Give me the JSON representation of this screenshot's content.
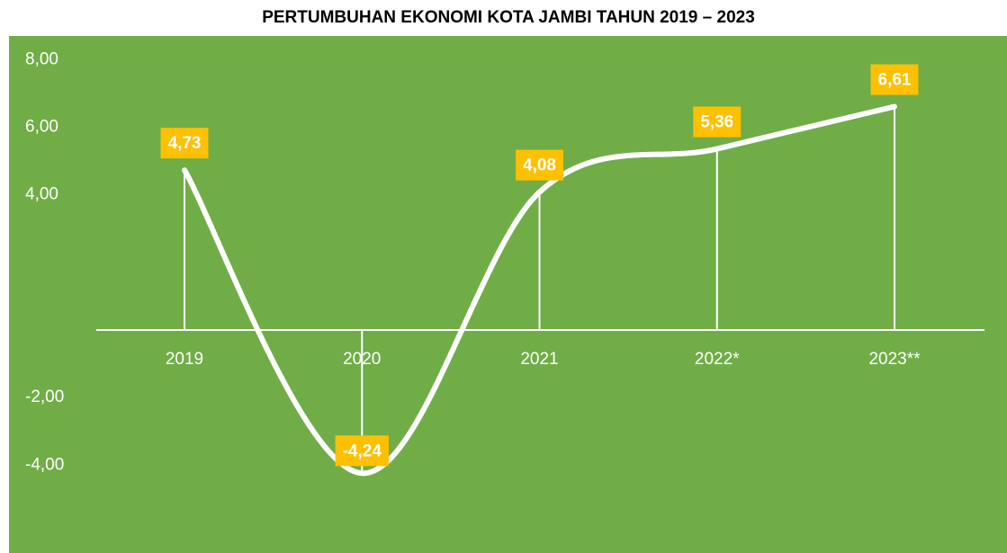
{
  "chart_data": {
    "type": "line",
    "title": "PERTUMBUHAN EKONOMI KOTA JAMBI TAHUN 2019 – 2023",
    "categories": [
      "2019",
      "2020",
      "2021",
      "2022*",
      "2023**"
    ],
    "values": [
      4.73,
      -4.24,
      4.08,
      5.36,
      6.61
    ],
    "value_labels": [
      "4,73",
      "-4,24",
      "4,08",
      "5,36",
      "6,61"
    ],
    "color": "#ffffff",
    "label_color": "#ffc000",
    "background": "#70ad47",
    "smooth": true,
    "ylim": [
      -6.6,
      8.7
    ],
    "yticks": [
      {
        "value": 8,
        "label": "8,00"
      },
      {
        "value": 6,
        "label": "6,00"
      },
      {
        "value": 4,
        "label": "4,00"
      },
      {
        "value": -2,
        "label": "-2,00"
      },
      {
        "value": -4,
        "label": "-4,00"
      }
    ],
    "grid": false
  }
}
